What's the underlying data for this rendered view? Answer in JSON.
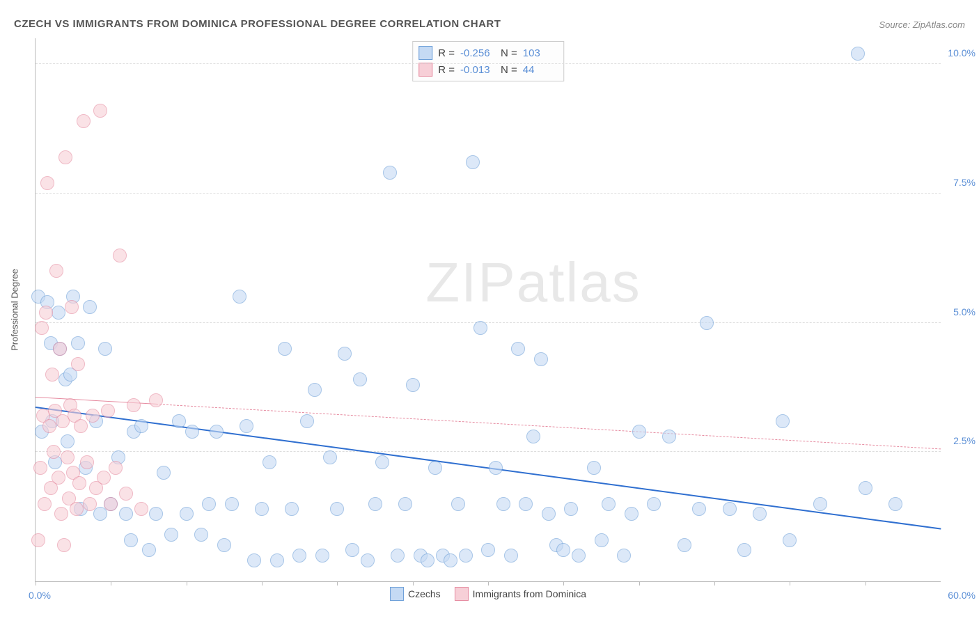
{
  "title": "CZECH VS IMMIGRANTS FROM DOMINICA PROFESSIONAL DEGREE CORRELATION CHART",
  "source": "Source: ZipAtlas.com",
  "ylabel": "Professional Degree",
  "watermark_a": "ZIP",
  "watermark_b": "atlas",
  "chart": {
    "type": "scatter",
    "xlim": [
      0,
      60
    ],
    "ylim": [
      0,
      10.5
    ],
    "x_ticks": [
      0,
      5,
      10,
      15,
      20,
      25,
      30,
      35,
      40,
      45,
      50,
      55
    ],
    "y_gridlines": [
      2.5,
      5.0,
      7.5,
      10.0
    ],
    "y_tick_labels": [
      "2.5%",
      "5.0%",
      "7.5%",
      "10.0%"
    ],
    "x_min_label": "0.0%",
    "x_max_label": "60.0%",
    "background_color": "#ffffff",
    "grid_color": "#dddddd",
    "axis_color": "#bbbbbb",
    "marker_radius": 9,
    "marker_border_width": 1.5,
    "series": [
      {
        "name": "Czechs",
        "fill": "#c5daf4",
        "stroke": "#6d9fd8",
        "fill_opacity": 0.6,
        "R": "-0.256",
        "N": "103",
        "trend": {
          "x1": 0,
          "y1": 3.35,
          "x2": 60,
          "y2": 1.0,
          "color": "#2f6fd0",
          "width": 2.5,
          "dash": "solid"
        },
        "points": [
          [
            0.2,
            5.5
          ],
          [
            0.4,
            2.9
          ],
          [
            0.8,
            5.4
          ],
          [
            1.0,
            4.6
          ],
          [
            1.1,
            3.1
          ],
          [
            1.3,
            2.3
          ],
          [
            1.5,
            5.2
          ],
          [
            1.6,
            4.5
          ],
          [
            2.0,
            3.9
          ],
          [
            2.1,
            2.7
          ],
          [
            2.3,
            4.0
          ],
          [
            2.5,
            5.5
          ],
          [
            2.8,
            4.6
          ],
          [
            3.0,
            1.4
          ],
          [
            3.3,
            2.2
          ],
          [
            3.6,
            5.3
          ],
          [
            4.0,
            3.1
          ],
          [
            4.3,
            1.3
          ],
          [
            4.6,
            4.5
          ],
          [
            5.0,
            1.5
          ],
          [
            5.5,
            2.4
          ],
          [
            6.0,
            1.3
          ],
          [
            6.3,
            0.8
          ],
          [
            6.5,
            2.9
          ],
          [
            7.0,
            3.0
          ],
          [
            7.5,
            0.6
          ],
          [
            8.0,
            1.3
          ],
          [
            8.5,
            2.1
          ],
          [
            9.0,
            0.9
          ],
          [
            9.5,
            3.1
          ],
          [
            10.0,
            1.3
          ],
          [
            10.4,
            2.9
          ],
          [
            11.0,
            0.9
          ],
          [
            11.5,
            1.5
          ],
          [
            12.0,
            2.9
          ],
          [
            12.5,
            0.7
          ],
          [
            13.0,
            1.5
          ],
          [
            13.5,
            5.5
          ],
          [
            14.0,
            3.0
          ],
          [
            14.5,
            0.4
          ],
          [
            15.0,
            1.4
          ],
          [
            15.5,
            2.3
          ],
          [
            16.0,
            0.4
          ],
          [
            16.5,
            4.5
          ],
          [
            17.0,
            1.4
          ],
          [
            17.5,
            0.5
          ],
          [
            18.0,
            3.1
          ],
          [
            18.5,
            3.7
          ],
          [
            19.0,
            0.5
          ],
          [
            19.5,
            2.4
          ],
          [
            20.0,
            1.4
          ],
          [
            20.5,
            4.4
          ],
          [
            21.0,
            0.6
          ],
          [
            21.5,
            3.9
          ],
          [
            22.0,
            0.4
          ],
          [
            22.5,
            1.5
          ],
          [
            23.0,
            2.3
          ],
          [
            23.5,
            7.9
          ],
          [
            24.0,
            0.5
          ],
          [
            24.5,
            1.5
          ],
          [
            25.0,
            3.8
          ],
          [
            25.5,
            0.5
          ],
          [
            26.0,
            0.4
          ],
          [
            26.5,
            2.2
          ],
          [
            27.0,
            0.5
          ],
          [
            27.5,
            0.4
          ],
          [
            28.0,
            1.5
          ],
          [
            28.5,
            0.5
          ],
          [
            29.0,
            8.1
          ],
          [
            29.5,
            4.9
          ],
          [
            30.0,
            0.6
          ],
          [
            30.5,
            2.2
          ],
          [
            31.0,
            1.5
          ],
          [
            31.5,
            0.5
          ],
          [
            32.0,
            4.5
          ],
          [
            32.5,
            1.5
          ],
          [
            33.0,
            2.8
          ],
          [
            33.5,
            4.3
          ],
          [
            34.0,
            1.3
          ],
          [
            34.5,
            0.7
          ],
          [
            35.0,
            0.6
          ],
          [
            35.5,
            1.4
          ],
          [
            36.0,
            0.5
          ],
          [
            37.0,
            2.2
          ],
          [
            37.5,
            0.8
          ],
          [
            38.0,
            1.5
          ],
          [
            39.0,
            0.5
          ],
          [
            39.5,
            1.3
          ],
          [
            40.0,
            2.9
          ],
          [
            41.0,
            1.5
          ],
          [
            42.0,
            2.8
          ],
          [
            43.0,
            0.7
          ],
          [
            44.0,
            1.4
          ],
          [
            44.5,
            5.0
          ],
          [
            46.0,
            1.4
          ],
          [
            47.0,
            0.6
          ],
          [
            48.0,
            1.3
          ],
          [
            49.5,
            3.1
          ],
          [
            50.0,
            0.8
          ],
          [
            52.0,
            1.5
          ],
          [
            54.5,
            10.2
          ],
          [
            55.0,
            1.8
          ],
          [
            57.0,
            1.5
          ]
        ]
      },
      {
        "name": "Immigrants from Dominica",
        "fill": "#f7cfd7",
        "stroke": "#e68ba0",
        "fill_opacity": 0.6,
        "R": "-0.013",
        "N": "44",
        "trend": {
          "x1": 0,
          "y1": 3.55,
          "x2": 60,
          "y2": 2.55,
          "color": "#e68ba0",
          "width": 1.5,
          "dash": "dashed",
          "solid_until_x": 8
        },
        "points": [
          [
            0.2,
            0.8
          ],
          [
            0.3,
            2.2
          ],
          [
            0.4,
            4.9
          ],
          [
            0.5,
            3.2
          ],
          [
            0.6,
            1.5
          ],
          [
            0.7,
            5.2
          ],
          [
            0.8,
            7.7
          ],
          [
            0.9,
            3.0
          ],
          [
            1.0,
            1.8
          ],
          [
            1.1,
            4.0
          ],
          [
            1.2,
            2.5
          ],
          [
            1.3,
            3.3
          ],
          [
            1.4,
            6.0
          ],
          [
            1.5,
            2.0
          ],
          [
            1.6,
            4.5
          ],
          [
            1.7,
            1.3
          ],
          [
            1.8,
            3.1
          ],
          [
            1.9,
            0.7
          ],
          [
            2.0,
            8.2
          ],
          [
            2.1,
            2.4
          ],
          [
            2.2,
            1.6
          ],
          [
            2.3,
            3.4
          ],
          [
            2.4,
            5.3
          ],
          [
            2.5,
            2.1
          ],
          [
            2.6,
            3.2
          ],
          [
            2.7,
            1.4
          ],
          [
            2.8,
            4.2
          ],
          [
            2.9,
            1.9
          ],
          [
            3.0,
            3.0
          ],
          [
            3.2,
            8.9
          ],
          [
            3.4,
            2.3
          ],
          [
            3.6,
            1.5
          ],
          [
            3.8,
            3.2
          ],
          [
            4.0,
            1.8
          ],
          [
            4.3,
            9.1
          ],
          [
            4.5,
            2.0
          ],
          [
            4.8,
            3.3
          ],
          [
            5.0,
            1.5
          ],
          [
            5.3,
            2.2
          ],
          [
            5.6,
            6.3
          ],
          [
            6.0,
            1.7
          ],
          [
            6.5,
            3.4
          ],
          [
            7.0,
            1.4
          ],
          [
            8.0,
            3.5
          ]
        ]
      }
    ]
  },
  "legend": {
    "items": [
      {
        "label": "Czechs",
        "fill": "#c5daf4",
        "stroke": "#6d9fd8"
      },
      {
        "label": "Immigrants from Dominica",
        "fill": "#f7cfd7",
        "stroke": "#e68ba0"
      }
    ]
  },
  "stat_labels": {
    "R": "R =",
    "N": "N ="
  }
}
